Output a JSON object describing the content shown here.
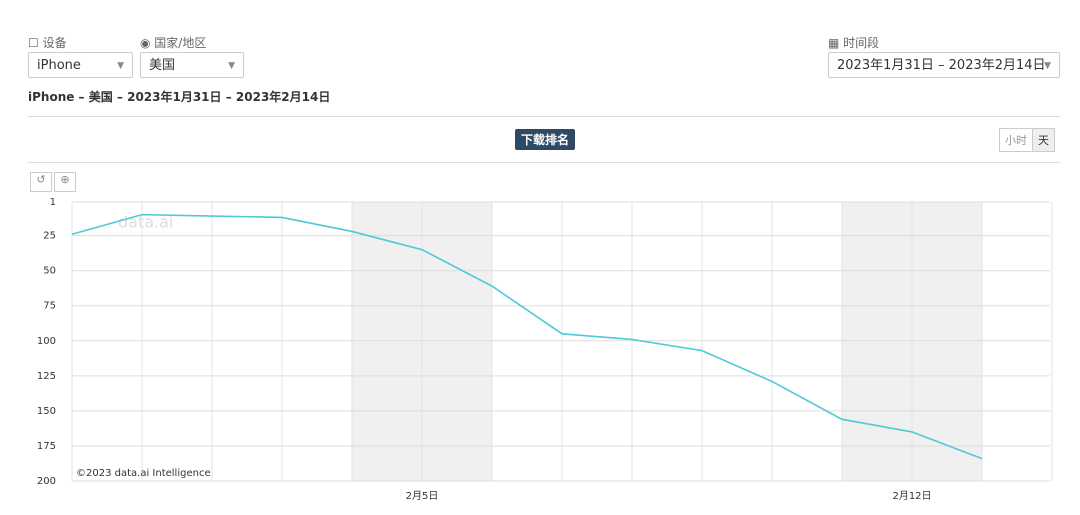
{
  "filters": {
    "device_label": "设备",
    "device_value": "iPhone",
    "country_label": "国家/地区",
    "country_value": "美国",
    "period_label": "时间段",
    "period_value": "2023年1月31日 – 2023年2月14日"
  },
  "summary": "iPhone – 美国 – 2023年1月31日 – 2023年2月14日",
  "tab": "下载排名",
  "granularity": [
    "小时",
    "天"
  ],
  "watermark": "data.ai",
  "credit": "©2023 data.ai Intelligence",
  "chart_data": {
    "type": "line",
    "categories": [
      null,
      null,
      null,
      null,
      null,
      "2月5日",
      null,
      null,
      null,
      null,
      null,
      null,
      "2月12日",
      null,
      null
    ],
    "values": [
      24,
      10,
      11,
      12,
      22,
      35,
      61,
      95,
      99,
      107,
      129,
      156,
      165,
      184,
      null
    ],
    "color": "#4dcad8",
    "ylim": [
      1,
      200
    ],
    "inverted": true,
    "yticks": [
      1,
      25,
      50,
      75,
      100,
      125,
      150,
      175,
      200
    ],
    "grid": true
  }
}
